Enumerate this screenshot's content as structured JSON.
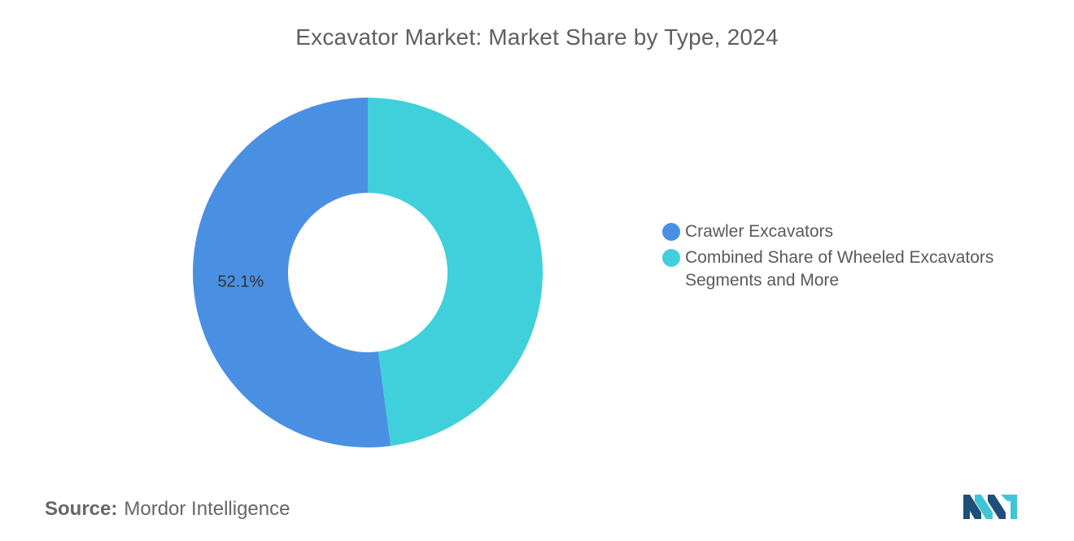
{
  "chart_data": {
    "type": "pie",
    "subtype": "donut",
    "title": "Excavator Market: Market Share by Type, 2024",
    "slices": [
      {
        "name": "Crawler Excavators",
        "value": 52.1,
        "color": "#4a90e2",
        "label": "52.1%"
      },
      {
        "name": "Combined Share of Wheeled Excavators Segments and More",
        "value": 47.9,
        "color": "#40d0db",
        "label": ""
      }
    ],
    "legend_position": "right"
  },
  "legend": {
    "items": [
      {
        "label": "Crawler Excavators",
        "color": "#4a90e2"
      },
      {
        "label": "Combined Share of Wheeled Excavators Segments and More",
        "color": "#40d0db"
      }
    ]
  },
  "source": {
    "label": "Source:",
    "text": "Mordor Intelligence"
  },
  "logo": {
    "icon": "mordor-intelligence-logo",
    "colors": [
      "#1f4e79",
      "#40c4d8"
    ]
  }
}
